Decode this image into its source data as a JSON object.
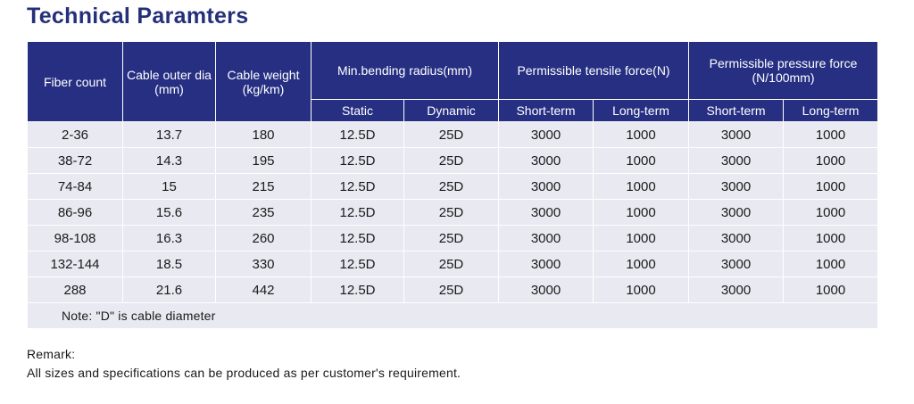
{
  "title": "Technical Paramters",
  "table": {
    "headers": {
      "fiber_count": "Fiber count",
      "outer_dia": "Cable outer dia (mm)",
      "weight": "Cable weight (kg/km)",
      "bending": "Min.bending radius(mm)",
      "tensile": "Permissible tensile force(N)",
      "pressure": "Permissible pressure force (N/100mm)",
      "static": "Static",
      "dynamic": "Dynamic",
      "tensile_short": "Short-term",
      "tensile_long": "Long-term",
      "pressure_short": "Short-term",
      "pressure_long": "Long-term"
    },
    "rows": [
      [
        "2-36",
        "13.7",
        "180",
        "12.5D",
        "25D",
        "3000",
        "1000",
        "3000",
        "1000"
      ],
      [
        "38-72",
        "14.3",
        "195",
        "12.5D",
        "25D",
        "3000",
        "1000",
        "3000",
        "1000"
      ],
      [
        "74-84",
        "15",
        "215",
        "12.5D",
        "25D",
        "3000",
        "1000",
        "3000",
        "1000"
      ],
      [
        "86-96",
        "15.6",
        "235",
        "12.5D",
        "25D",
        "3000",
        "1000",
        "3000",
        "1000"
      ],
      [
        "98-108",
        "16.3",
        "260",
        "12.5D",
        "25D",
        "3000",
        "1000",
        "3000",
        "1000"
      ],
      [
        "132-144",
        "18.5",
        "330",
        "12.5D",
        "25D",
        "3000",
        "1000",
        "3000",
        "1000"
      ],
      [
        "288",
        "21.6",
        "442",
        "12.5D",
        "25D",
        "3000",
        "1000",
        "3000",
        "1000"
      ]
    ],
    "note": "Note: \"D\" is cable diameter"
  },
  "remark": {
    "label": "Remark:",
    "text": "All sizes and specifications can be produced as per customer's requirement."
  },
  "colors": {
    "header_bg": "#262f82",
    "title": "#24307a",
    "row_bg": "#e9e9f1"
  }
}
